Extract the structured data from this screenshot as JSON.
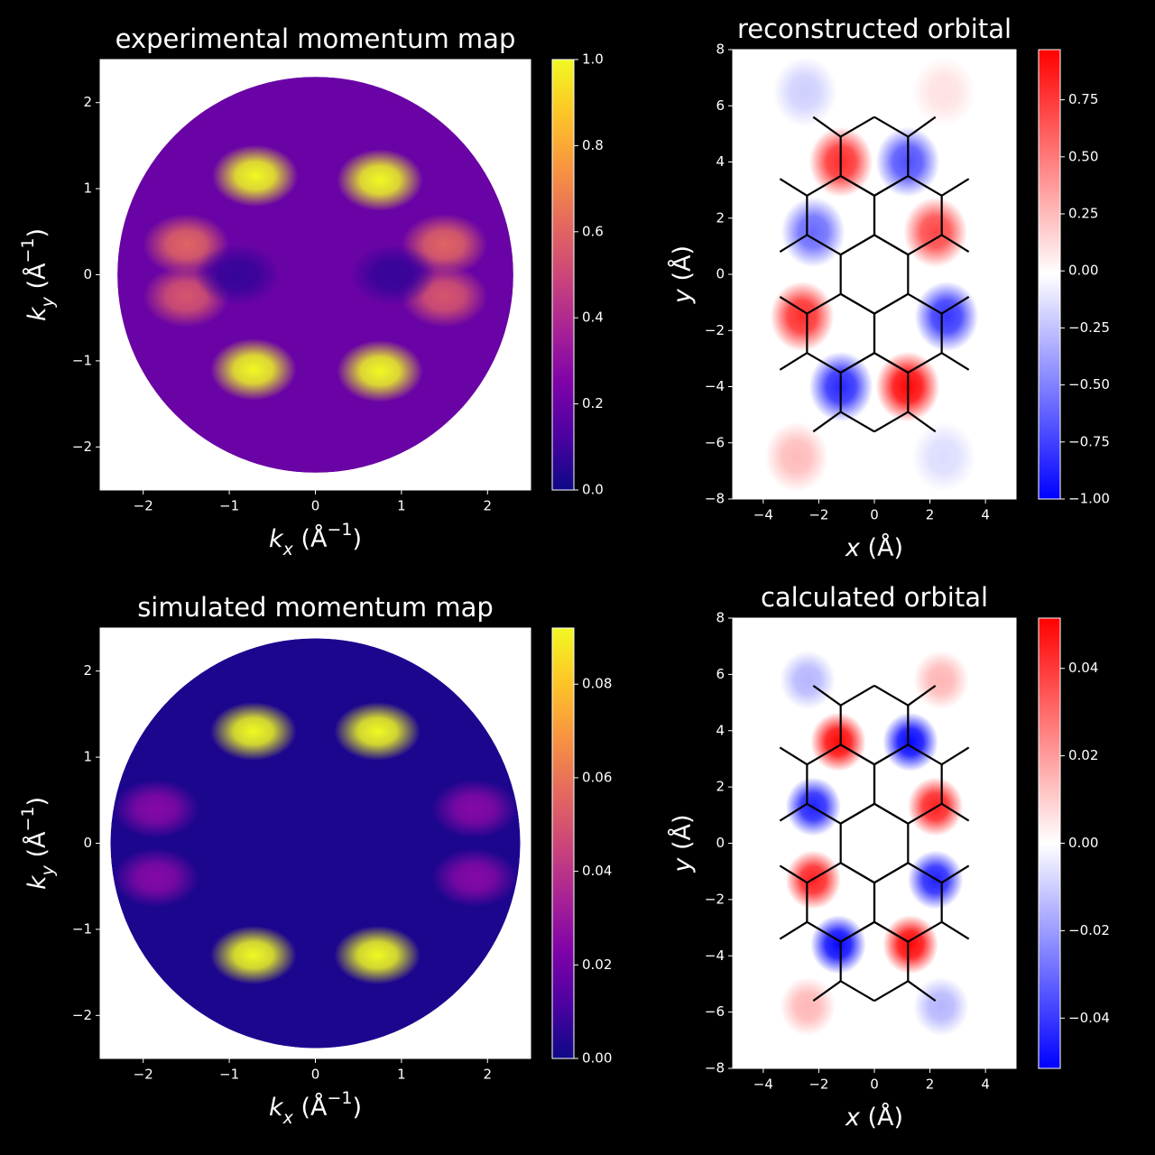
{
  "chart_data": [
    {
      "type": "heatmap",
      "title": "experimental momentum map",
      "xlabel": [
        "k",
        "x",
        " (Å",
        "−1",
        ")"
      ],
      "ylabel": [
        "k",
        "y",
        " (Å",
        "−1",
        ")"
      ],
      "xlim": [
        -2.5,
        2.5
      ],
      "ylim": [
        -2.5,
        2.5
      ],
      "xticks": [
        {
          "value": -2,
          "label": "−2"
        },
        {
          "value": -1,
          "label": "−1"
        },
        0,
        1,
        2
      ],
      "yticks": [
        {
          "value": -2,
          "label": "−2"
        },
        {
          "value": -1,
          "label": "−1"
        },
        0,
        1,
        2
      ],
      "colormap": "plasma",
      "clim": [
        0,
        1
      ],
      "cticks": [
        {
          "value": 0,
          "label": "0.0"
        },
        0.2,
        0.4,
        0.6,
        0.8,
        {
          "value": 1,
          "label": "1.0"
        }
      ],
      "data_radius": 2.3,
      "background_level": 0.2,
      "peaks": [
        {
          "x": -0.7,
          "y": 1.15,
          "value": 1.0
        },
        {
          "x": 0.75,
          "y": 1.1,
          "value": 1.0
        },
        {
          "x": -0.72,
          "y": -1.1,
          "value": 1.0
        },
        {
          "x": 0.75,
          "y": -1.12,
          "value": 1.0
        },
        {
          "x": -1.5,
          "y": 0.35,
          "value": 0.6
        },
        {
          "x": -1.5,
          "y": -0.25,
          "value": 0.55
        },
        {
          "x": 1.5,
          "y": 0.35,
          "value": 0.6
        },
        {
          "x": 1.5,
          "y": -0.25,
          "value": 0.55
        },
        {
          "x": -0.9,
          "y": 0,
          "value": 0.08
        },
        {
          "x": 0.9,
          "y": 0,
          "value": 0.08
        }
      ],
      "overlay": false
    },
    {
      "type": "heatmap",
      "title": "reconstructed orbital",
      "xlabel": [
        "x",
        " (Å)"
      ],
      "ylabel": [
        "y",
        " (Å)"
      ],
      "xlim": [
        -5.1,
        5.1
      ],
      "ylim": [
        -8,
        8
      ],
      "xticks": [
        {
          "value": -4,
          "label": "−4"
        },
        {
          "value": -2,
          "label": "−2"
        },
        0,
        2,
        4
      ],
      "yticks": [
        {
          "value": -8,
          "label": "−8"
        },
        {
          "value": -6,
          "label": "−6"
        },
        {
          "value": -4,
          "label": "−4"
        },
        {
          "value": -2,
          "label": "−2"
        },
        0,
        2,
        4,
        6,
        8
      ],
      "colormap": "bwr",
      "clim": [
        -1,
        0.97
      ],
      "cticks": [
        {
          "value": -1,
          "label": "−1.00"
        },
        {
          "value": -0.75,
          "label": "−0.75"
        },
        {
          "value": -0.5,
          "label": "−0.50"
        },
        {
          "value": -0.25,
          "label": "−0.25"
        },
        {
          "value": 0,
          "label": "0.00"
        },
        0.25,
        {
          "value": 0.5,
          "label": "0.50"
        },
        0.75
      ],
      "peaks": [
        {
          "x": -1.2,
          "y": 4.0,
          "value": 0.8
        },
        {
          "x": 2.2,
          "y": 1.5,
          "value": 0.7
        },
        {
          "x": -2.6,
          "y": -1.5,
          "value": 0.8
        },
        {
          "x": 1.2,
          "y": -4.0,
          "value": 0.95
        },
        {
          "x": 1.2,
          "y": 4.0,
          "value": -0.7
        },
        {
          "x": -2.2,
          "y": 1.5,
          "value": -0.6
        },
        {
          "x": 2.6,
          "y": -1.5,
          "value": -0.8
        },
        {
          "x": -1.2,
          "y": -4.0,
          "value": -0.85
        },
        {
          "x": -2.5,
          "y": 6.5,
          "value": -0.2
        },
        {
          "x": 2.5,
          "y": 6.5,
          "value": 0.1
        },
        {
          "x": -2.8,
          "y": -6.5,
          "value": 0.25
        },
        {
          "x": 2.5,
          "y": -6.5,
          "value": -0.15
        }
      ],
      "overlay": true
    },
    {
      "type": "heatmap",
      "title": "simulated momentum map",
      "xlabel": [
        "k",
        "x",
        " (Å",
        "−1",
        ")"
      ],
      "ylabel": [
        "k",
        "y",
        " (Å",
        "−1",
        ")"
      ],
      "xlim": [
        -2.5,
        2.5
      ],
      "ylim": [
        -2.5,
        2.5
      ],
      "xticks": [
        {
          "value": -2,
          "label": "−2"
        },
        {
          "value": -1,
          "label": "−1"
        },
        0,
        1,
        2
      ],
      "yticks": [
        {
          "value": -2,
          "label": "−2"
        },
        {
          "value": -1,
          "label": "−1"
        },
        0,
        1,
        2
      ],
      "colormap": "plasma",
      "clim": [
        0,
        0.092
      ],
      "cticks": [
        {
          "value": 0,
          "label": "0.00"
        },
        0.02,
        0.04,
        0.06,
        0.08
      ],
      "data_radius": 2.38,
      "background_level": 0.003,
      "peaks": [
        {
          "x": -0.72,
          "y": 1.3,
          "value": 0.092
        },
        {
          "x": 0.72,
          "y": 1.3,
          "value": 0.092
        },
        {
          "x": -0.72,
          "y": -1.3,
          "value": 0.092
        },
        {
          "x": 0.72,
          "y": -1.3,
          "value": 0.092
        },
        {
          "x": -1.85,
          "y": 0.4,
          "value": 0.025
        },
        {
          "x": 1.85,
          "y": 0.4,
          "value": 0.025
        },
        {
          "x": -1.85,
          "y": -0.4,
          "value": 0.025
        },
        {
          "x": 1.85,
          "y": -0.4,
          "value": 0.025
        }
      ],
      "overlay": false
    },
    {
      "type": "heatmap",
      "title": "calculated orbital",
      "xlabel": [
        "x",
        " (Å)"
      ],
      "ylabel": [
        "y",
        " (Å)"
      ],
      "xlim": [
        -5.1,
        5.1
      ],
      "ylim": [
        -8,
        8
      ],
      "xticks": [
        {
          "value": -4,
          "label": "−4"
        },
        {
          "value": -2,
          "label": "−2"
        },
        0,
        2,
        4
      ],
      "yticks": [
        {
          "value": -8,
          "label": "−8"
        },
        {
          "value": -6,
          "label": "−6"
        },
        {
          "value": -4,
          "label": "−4"
        },
        {
          "value": -2,
          "label": "−2"
        },
        0,
        2,
        4,
        6,
        8
      ],
      "colormap": "bwr",
      "clim": [
        -0.0515,
        0.0515
      ],
      "cticks": [
        {
          "value": -0.04,
          "label": "−0.04"
        },
        {
          "value": -0.02,
          "label": "−0.02"
        },
        {
          "value": 0,
          "label": "0.00"
        },
        0.02,
        0.04
      ],
      "peaks": [
        {
          "x": -1.3,
          "y": 3.6,
          "value": 0.05
        },
        {
          "x": 2.2,
          "y": 1.3,
          "value": 0.045
        },
        {
          "x": -2.2,
          "y": -1.3,
          "value": 0.045
        },
        {
          "x": 1.3,
          "y": -3.6,
          "value": 0.05
        },
        {
          "x": 1.3,
          "y": 3.6,
          "value": -0.05
        },
        {
          "x": -2.2,
          "y": 1.3,
          "value": -0.045
        },
        {
          "x": 2.2,
          "y": -1.3,
          "value": -0.045
        },
        {
          "x": -1.3,
          "y": -3.6,
          "value": -0.05
        },
        {
          "x": -2.4,
          "y": 5.8,
          "value": -0.015
        },
        {
          "x": 2.4,
          "y": 5.8,
          "value": 0.015
        },
        {
          "x": -2.4,
          "y": -5.8,
          "value": 0.015
        },
        {
          "x": 2.4,
          "y": -5.8,
          "value": -0.015
        }
      ],
      "overlay": true
    }
  ]
}
